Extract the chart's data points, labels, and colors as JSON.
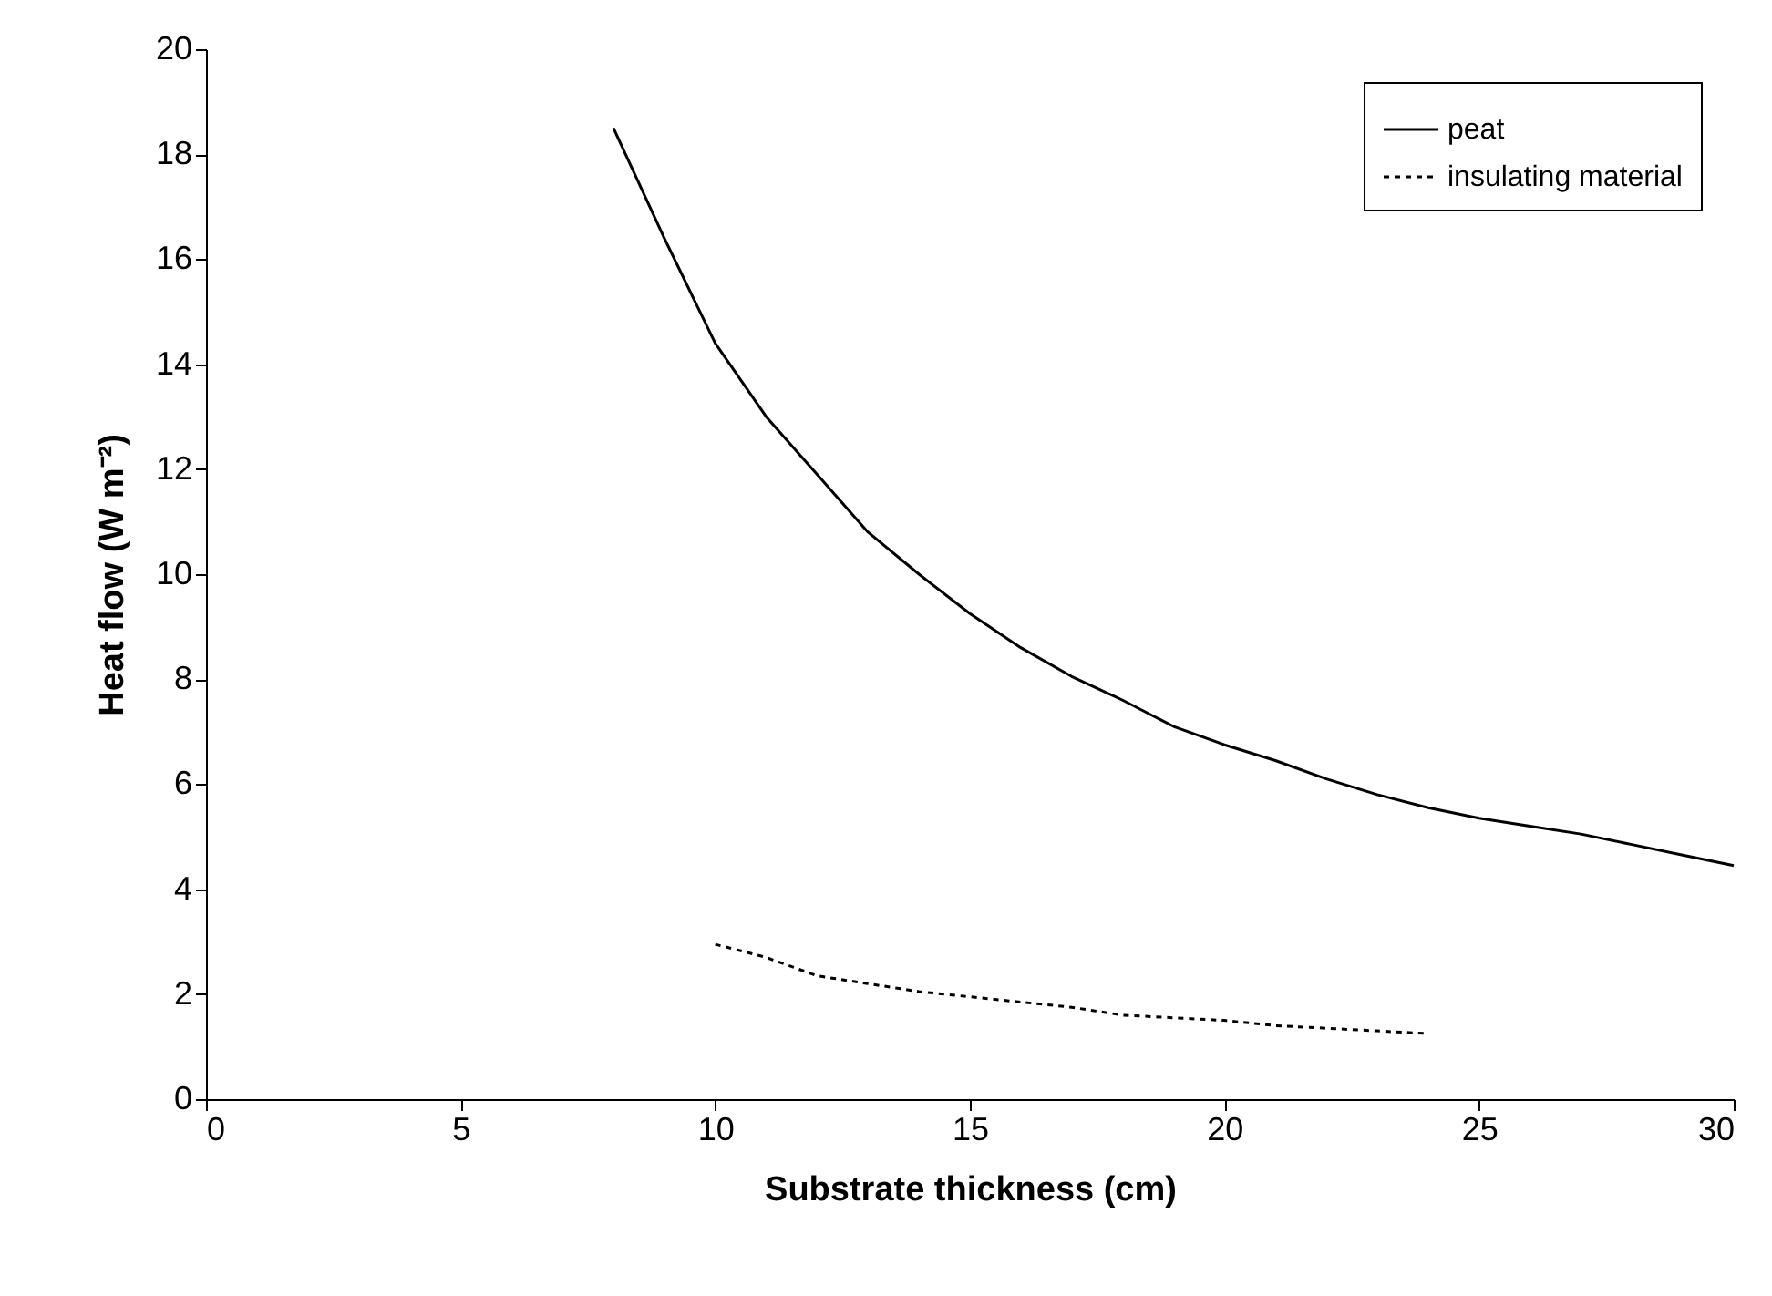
{
  "chart_data": {
    "type": "line",
    "xlabel": "Substrate thickness (cm)",
    "ylabel": "Heat  flow (W m⁻²)",
    "xlim": [
      0,
      30
    ],
    "xticks": [
      0,
      5,
      10,
      15,
      20,
      25,
      30
    ],
    "ylim": [
      0,
      20
    ],
    "yticks": [
      0,
      2,
      4,
      6,
      8,
      10,
      12,
      14,
      16,
      18,
      20
    ],
    "grid": false,
    "legend": "top right",
    "series": [
      {
        "name": "peat",
        "color": "#000000",
        "line_style": "solid",
        "x": [
          8,
          9,
          10,
          11,
          12,
          13,
          14,
          15,
          16,
          17,
          18,
          19,
          20,
          21,
          22,
          23,
          24,
          25,
          26,
          27,
          28,
          29,
          30
        ],
        "values": [
          18.5,
          16.4,
          14.4,
          13.0,
          11.9,
          10.8,
          10.0,
          9.25,
          8.6,
          8.05,
          7.6,
          7.1,
          6.75,
          6.45,
          6.1,
          5.8,
          5.55,
          5.35,
          5.2,
          5.05,
          4.85,
          4.65,
          4.45
        ]
      },
      {
        "name": "insulating material",
        "color": "#000000",
        "line_style": "dotted",
        "x": [
          10,
          11,
          12,
          13,
          14,
          15,
          16,
          17,
          18,
          19,
          20,
          21,
          22,
          23,
          24
        ],
        "values": [
          2.95,
          2.7,
          2.35,
          2.2,
          2.05,
          1.95,
          1.85,
          1.75,
          1.6,
          1.55,
          1.5,
          1.4,
          1.35,
          1.3,
          1.25
        ]
      }
    ]
  }
}
